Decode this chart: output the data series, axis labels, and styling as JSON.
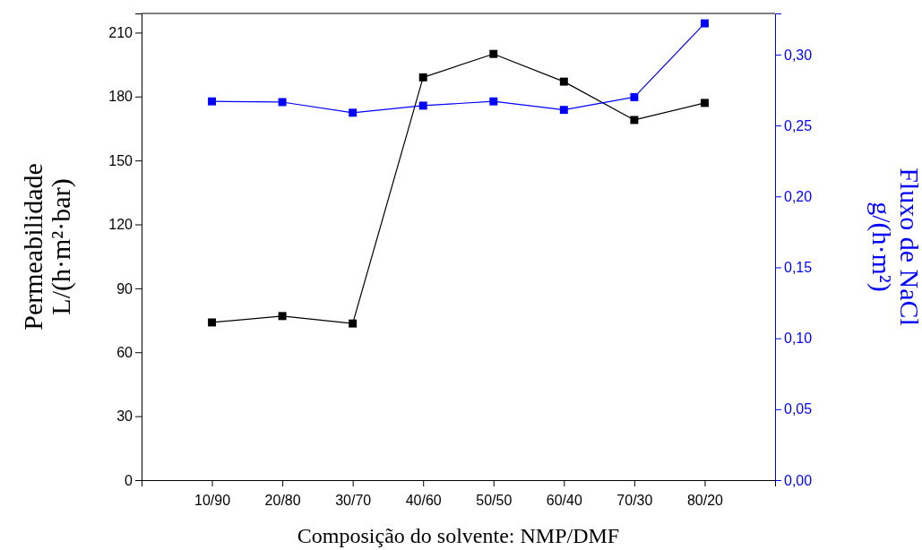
{
  "chart_data": {
    "type": "line",
    "xlabel": "Composição do solvente: NMP/DMF",
    "ylabel": "Permeabilidade\nL/(h·m²·bar)",
    "y2label": "Fluxo de NaCl\ng/(h·m²)",
    "categories": [
      "10/90",
      "20/80",
      "30/70",
      "40/60",
      "50/50",
      "60/40",
      "70/30",
      "80/20"
    ],
    "series": [
      {
        "color": "#000000",
        "values": [
          74,
          77,
          73.5,
          189,
          200,
          187,
          169,
          177
        ]
      },
      {
        "color": "#0000ff",
        "axis": "y2",
        "values": [
          0.267,
          0.2665,
          0.259,
          0.264,
          0.267,
          0.261,
          0.27,
          0.322
        ]
      }
    ],
    "ylim": [
      0,
      219
    ],
    "yticks": [
      0,
      30,
      60,
      90,
      120,
      150,
      180,
      210
    ],
    "y2lim": [
      0,
      0.329
    ],
    "y2ticks": [
      {
        "value": 0,
        "label": "0,00"
      },
      {
        "value": 0.05,
        "label": "0,05"
      },
      {
        "value": 0.1,
        "label": "0,10"
      },
      {
        "value": 0.15,
        "label": "0,15"
      },
      {
        "value": 0.2,
        "label": "0,20"
      },
      {
        "value": 0.25,
        "label": "0,25"
      },
      {
        "value": 0.3,
        "label": "0,30"
      }
    ],
    "marker": "square"
  }
}
